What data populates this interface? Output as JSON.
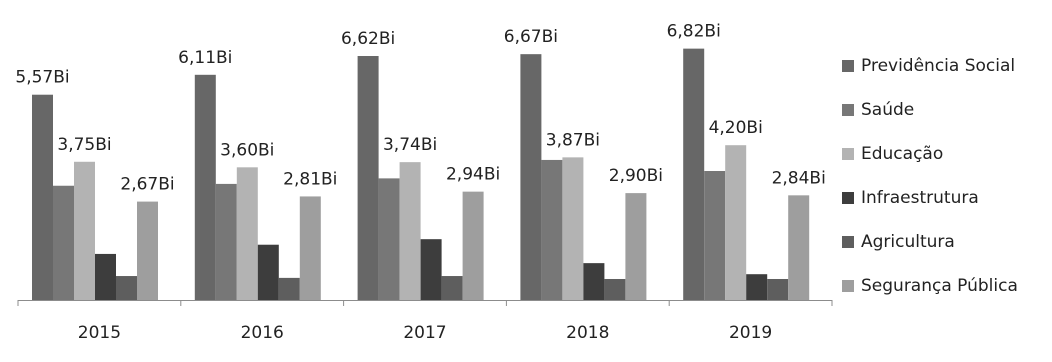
{
  "chart_data": {
    "type": "bar",
    "categories": [
      "2015",
      "2016",
      "2017",
      "2018",
      "2019"
    ],
    "series": [
      {
        "name": "Previdência Social",
        "color": "#676767",
        "values": [
          5.57,
          6.11,
          6.62,
          6.67,
          6.82
        ],
        "labels": [
          "5,57Bi",
          "6,11Bi",
          "6,62Bi",
          "6,67Bi",
          "6,82Bi"
        ]
      },
      {
        "name": "Saúde",
        "color": "#777777",
        "values": [
          3.1,
          3.15,
          3.3,
          3.8,
          3.5
        ],
        "labels": [
          "",
          "",
          "",
          "",
          ""
        ]
      },
      {
        "name": "Educação",
        "color": "#b3b3b3",
        "values": [
          3.75,
          3.6,
          3.74,
          3.87,
          4.2
        ],
        "labels": [
          "3,75Bi",
          "3,60Bi",
          "3,74Bi",
          "3,87Bi",
          "4,20Bi"
        ]
      },
      {
        "name": "Infraestrutura",
        "color": "#3d3d3d",
        "values": [
          1.25,
          1.5,
          1.65,
          1.0,
          0.7
        ],
        "labels": [
          "",
          "",
          "",
          "",
          ""
        ]
      },
      {
        "name": "Agricultura",
        "color": "#5e5e5e",
        "values": [
          0.65,
          0.6,
          0.65,
          0.57,
          0.57
        ],
        "labels": [
          "",
          "",
          "",
          "",
          ""
        ]
      },
      {
        "name": "Segurança Pública",
        "color": "#9e9e9e",
        "values": [
          2.67,
          2.81,
          2.94,
          2.9,
          2.84
        ],
        "labels": [
          "2,67Bi",
          "2,81Bi",
          "2,94Bi",
          "2,90Bi",
          "2,84Bi"
        ]
      }
    ],
    "title": "",
    "xlabel": "",
    "ylabel": "",
    "ylim": [
      0,
      7
    ],
    "grid": false,
    "legend_position": "right"
  }
}
